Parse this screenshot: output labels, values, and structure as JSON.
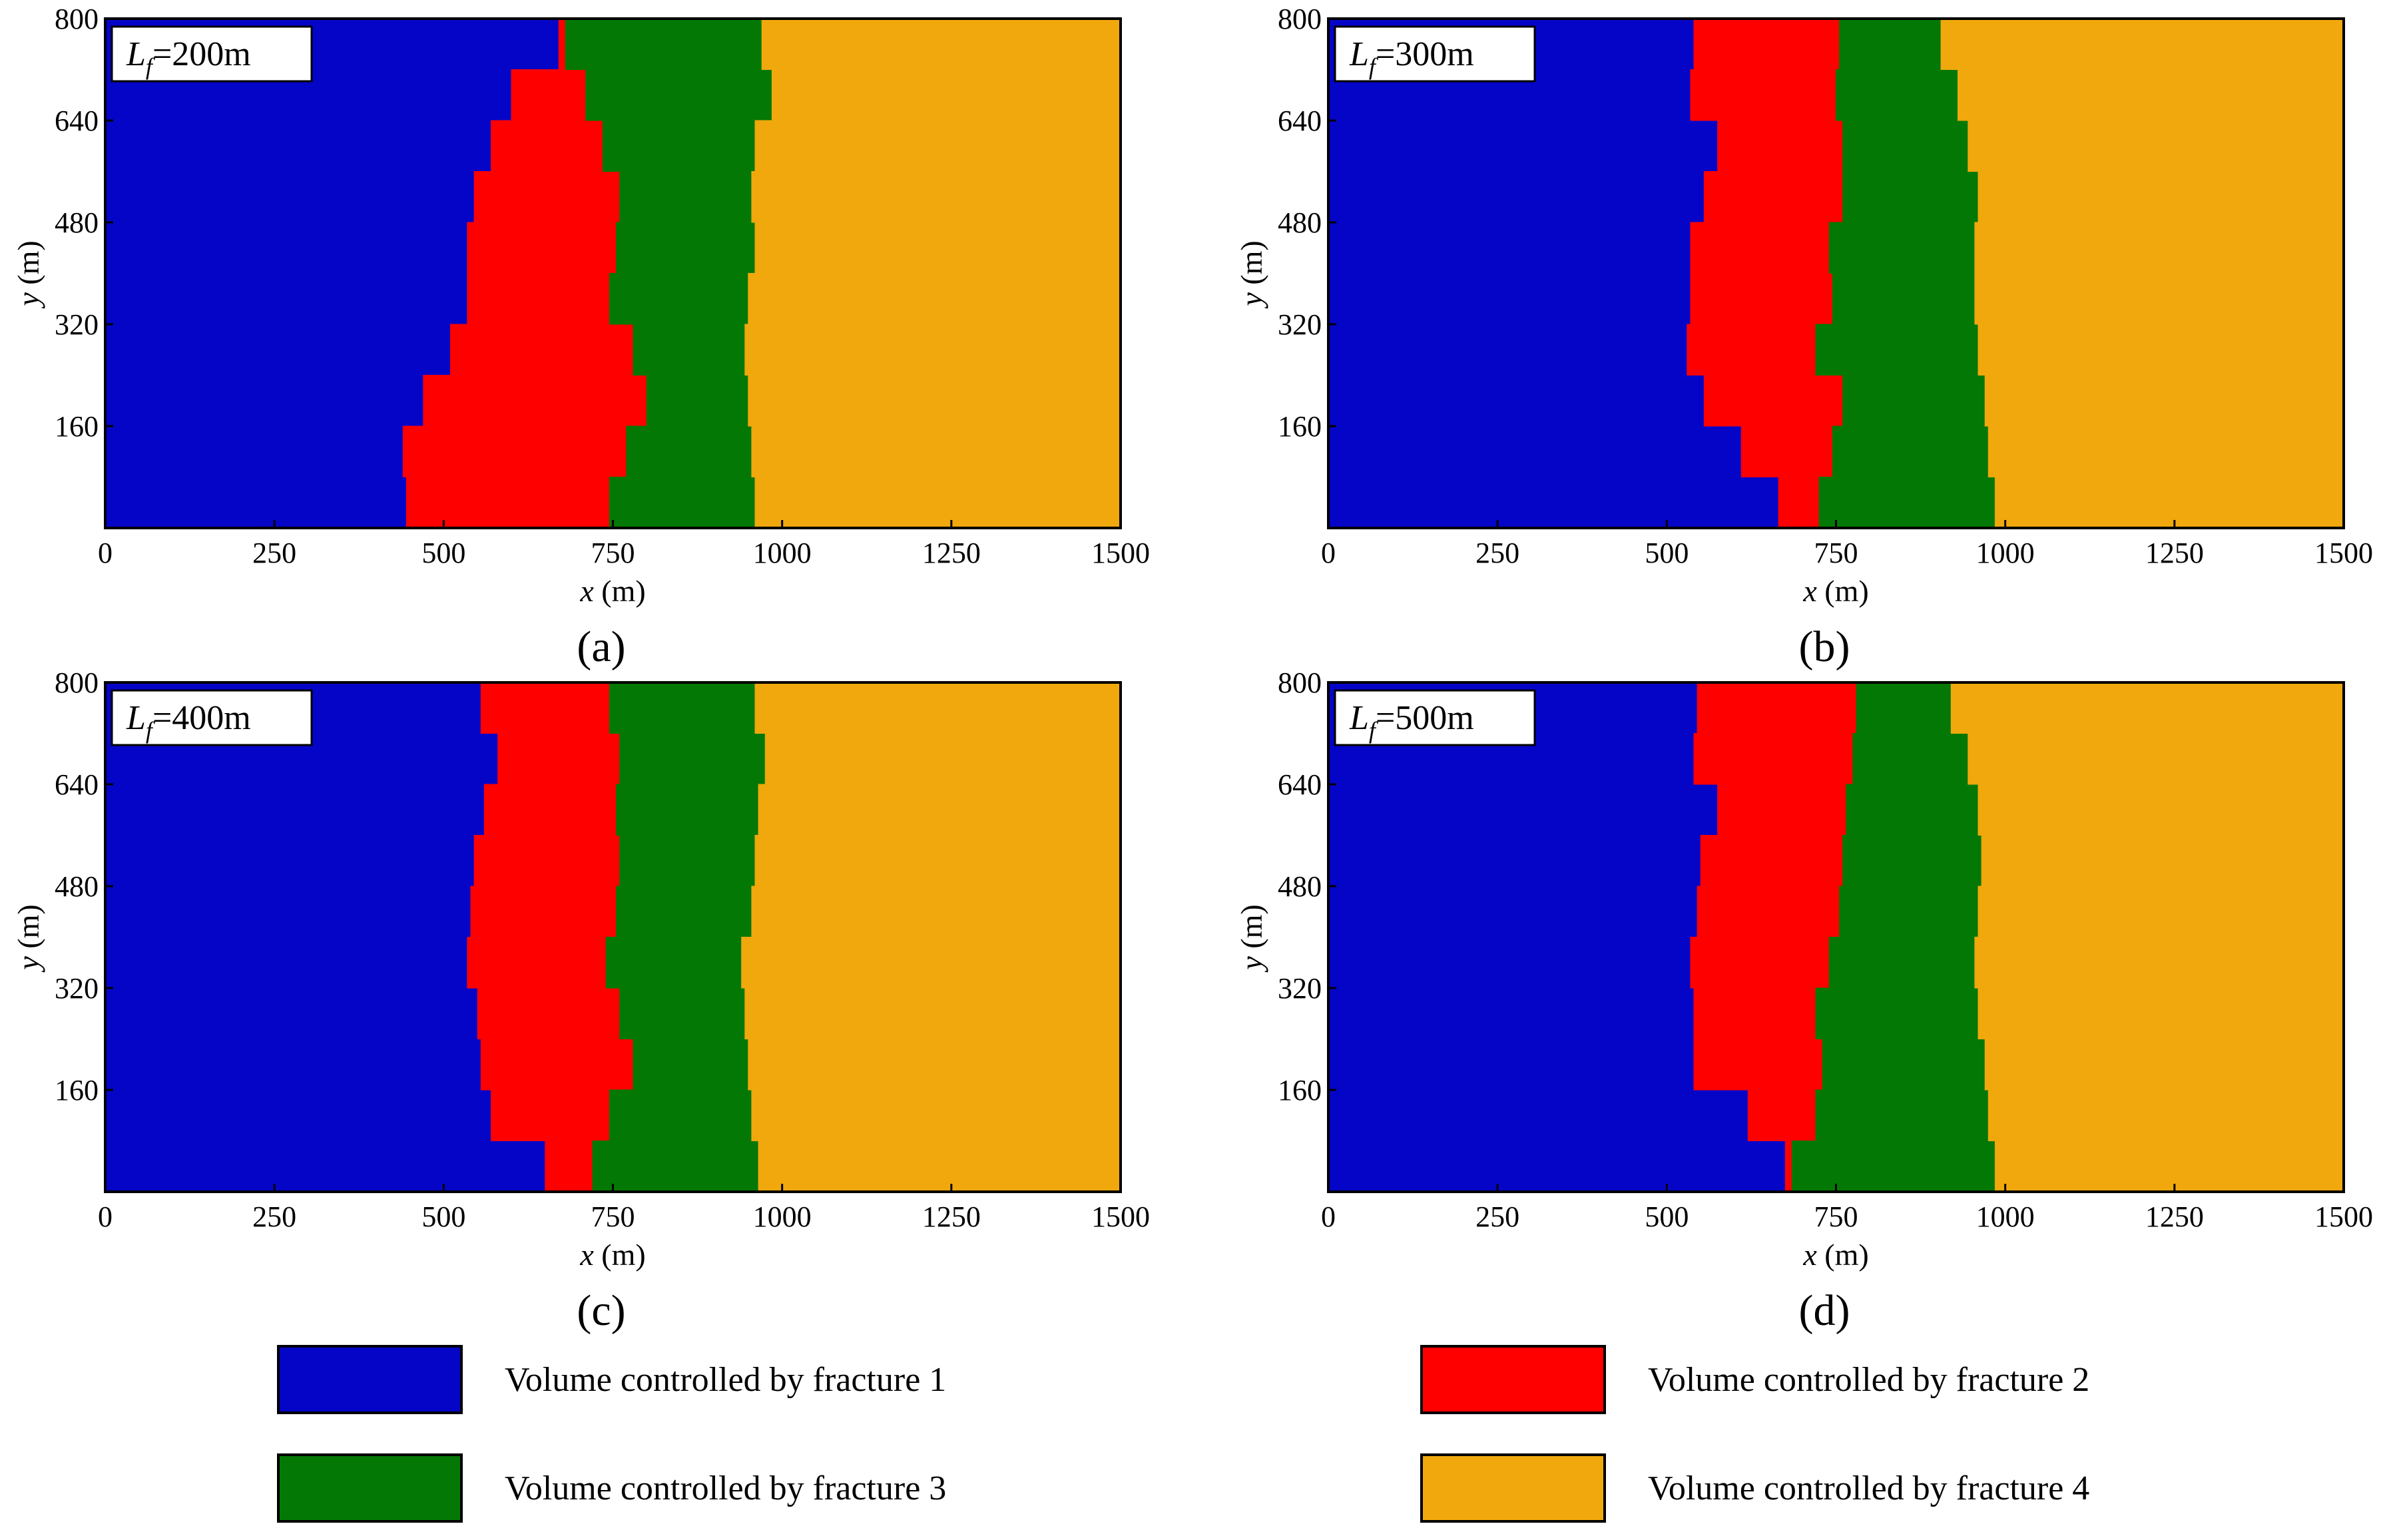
{
  "chart_data": [
    {
      "type": "area",
      "panel": "(a)",
      "annotation": {
        "base": "L",
        "sub": "f",
        "value": "=200m"
      },
      "xlabel": {
        "var": "x",
        "unit": " (m)"
      },
      "ylabel": {
        "var": "y",
        "unit": " (m)"
      },
      "xlim": [
        0,
        1500
      ],
      "ylim": [
        0,
        800
      ],
      "xticks": [
        0,
        250,
        500,
        750,
        1000,
        1250,
        1500
      ],
      "yticks": [
        160,
        320,
        480,
        640,
        800
      ],
      "y": [
        0,
        80,
        160,
        240,
        320,
        400,
        480,
        560,
        640,
        720,
        800
      ],
      "boundaries": [
        {
          "between": "fracture 1 | fracture 2",
          "x": [
            445,
            440,
            470,
            510,
            535,
            535,
            545,
            570,
            600,
            670,
            625
          ]
        },
        {
          "between": "fracture 2 | fracture 3",
          "x": [
            745,
            770,
            800,
            780,
            745,
            755,
            760,
            735,
            710,
            680,
            625
          ]
        },
        {
          "between": "fracture 3 | fracture 4",
          "x": [
            960,
            955,
            950,
            945,
            950,
            960,
            955,
            960,
            985,
            970,
            950
          ]
        }
      ]
    },
    {
      "type": "area",
      "panel": "(b)",
      "annotation": {
        "base": "L",
        "sub": "f",
        "value": "=300m"
      },
      "xlabel": {
        "var": "x",
        "unit": " (m)"
      },
      "ylabel": {
        "var": "y",
        "unit": " (m)"
      },
      "xlim": [
        0,
        1500
      ],
      "ylim": [
        0,
        800
      ],
      "xticks": [
        0,
        250,
        500,
        750,
        1000,
        1250,
        1500
      ],
      "yticks": [
        160,
        320,
        480,
        640,
        800
      ],
      "y": [
        0,
        80,
        160,
        240,
        320,
        400,
        480,
        560,
        640,
        720,
        800
      ],
      "boundaries": [
        {
          "between": "fracture 1 | fracture 2",
          "x": [
            665,
            610,
            555,
            530,
            535,
            535,
            555,
            575,
            535,
            540,
            540
          ]
        },
        {
          "between": "fracture 2 | fracture 3",
          "x": [
            725,
            745,
            760,
            720,
            745,
            740,
            760,
            760,
            750,
            755,
            760
          ]
        },
        {
          "between": "fracture 3 | fracture 4",
          "x": [
            985,
            975,
            970,
            960,
            955,
            955,
            960,
            945,
            930,
            905,
            910
          ]
        }
      ]
    },
    {
      "type": "area",
      "panel": "(c)",
      "annotation": {
        "base": "L",
        "sub": "f",
        "value": "=400m"
      },
      "xlabel": {
        "var": "x",
        "unit": " (m)"
      },
      "ylabel": {
        "var": "y",
        "unit": " (m)"
      },
      "xlim": [
        0,
        1500
      ],
      "ylim": [
        0,
        800
      ],
      "xticks": [
        0,
        250,
        500,
        750,
        1000,
        1250,
        1500
      ],
      "yticks": [
        160,
        320,
        480,
        640,
        800
      ],
      "y": [
        0,
        80,
        160,
        240,
        320,
        400,
        480,
        560,
        640,
        720,
        800
      ],
      "boundaries": [
        {
          "between": "fracture 1 | fracture 2",
          "x": [
            650,
            570,
            555,
            550,
            535,
            540,
            545,
            560,
            580,
            555,
            565
          ]
        },
        {
          "between": "fracture 2 | fracture 3",
          "x": [
            720,
            745,
            780,
            760,
            740,
            755,
            760,
            755,
            760,
            745,
            750
          ]
        },
        {
          "between": "fracture 3 | fracture 4",
          "x": [
            965,
            955,
            950,
            945,
            940,
            955,
            960,
            965,
            975,
            960,
            955
          ]
        }
      ]
    },
    {
      "type": "area",
      "panel": "(d)",
      "annotation": {
        "base": "L",
        "sub": "f",
        "value": "=500m"
      },
      "xlabel": {
        "var": "x",
        "unit": " (m)"
      },
      "ylabel": {
        "var": "y",
        "unit": " (m)"
      },
      "xlim": [
        0,
        1500
      ],
      "ylim": [
        0,
        800
      ],
      "xticks": [
        0,
        250,
        500,
        750,
        1000,
        1250,
        1500
      ],
      "yticks": [
        160,
        320,
        480,
        640,
        800
      ],
      "y": [
        0,
        80,
        160,
        240,
        320,
        400,
        480,
        560,
        640,
        720,
        800
      ],
      "boundaries": [
        {
          "between": "fracture 1 | fracture 2",
          "x": [
            675,
            620,
            540,
            540,
            535,
            545,
            550,
            575,
            540,
            545,
            545
          ]
        },
        {
          "between": "fracture 2 | fracture 3",
          "x": [
            685,
            720,
            730,
            720,
            740,
            755,
            760,
            765,
            775,
            780,
            765
          ]
        },
        {
          "between": "fracture 3 | fracture 4",
          "x": [
            985,
            975,
            970,
            960,
            955,
            960,
            965,
            960,
            945,
            920,
            905
          ]
        }
      ]
    }
  ],
  "legend": [
    {
      "label": "Volume controlled by fracture 1",
      "color": "#0505c8"
    },
    {
      "label": "Volume controlled by fracture 2",
      "color": "#fe0000"
    },
    {
      "label": "Volume controlled by fracture 3",
      "color": "#047804"
    },
    {
      "label": "Volume controlled by fracture 4",
      "color": "#f0a80c"
    }
  ]
}
